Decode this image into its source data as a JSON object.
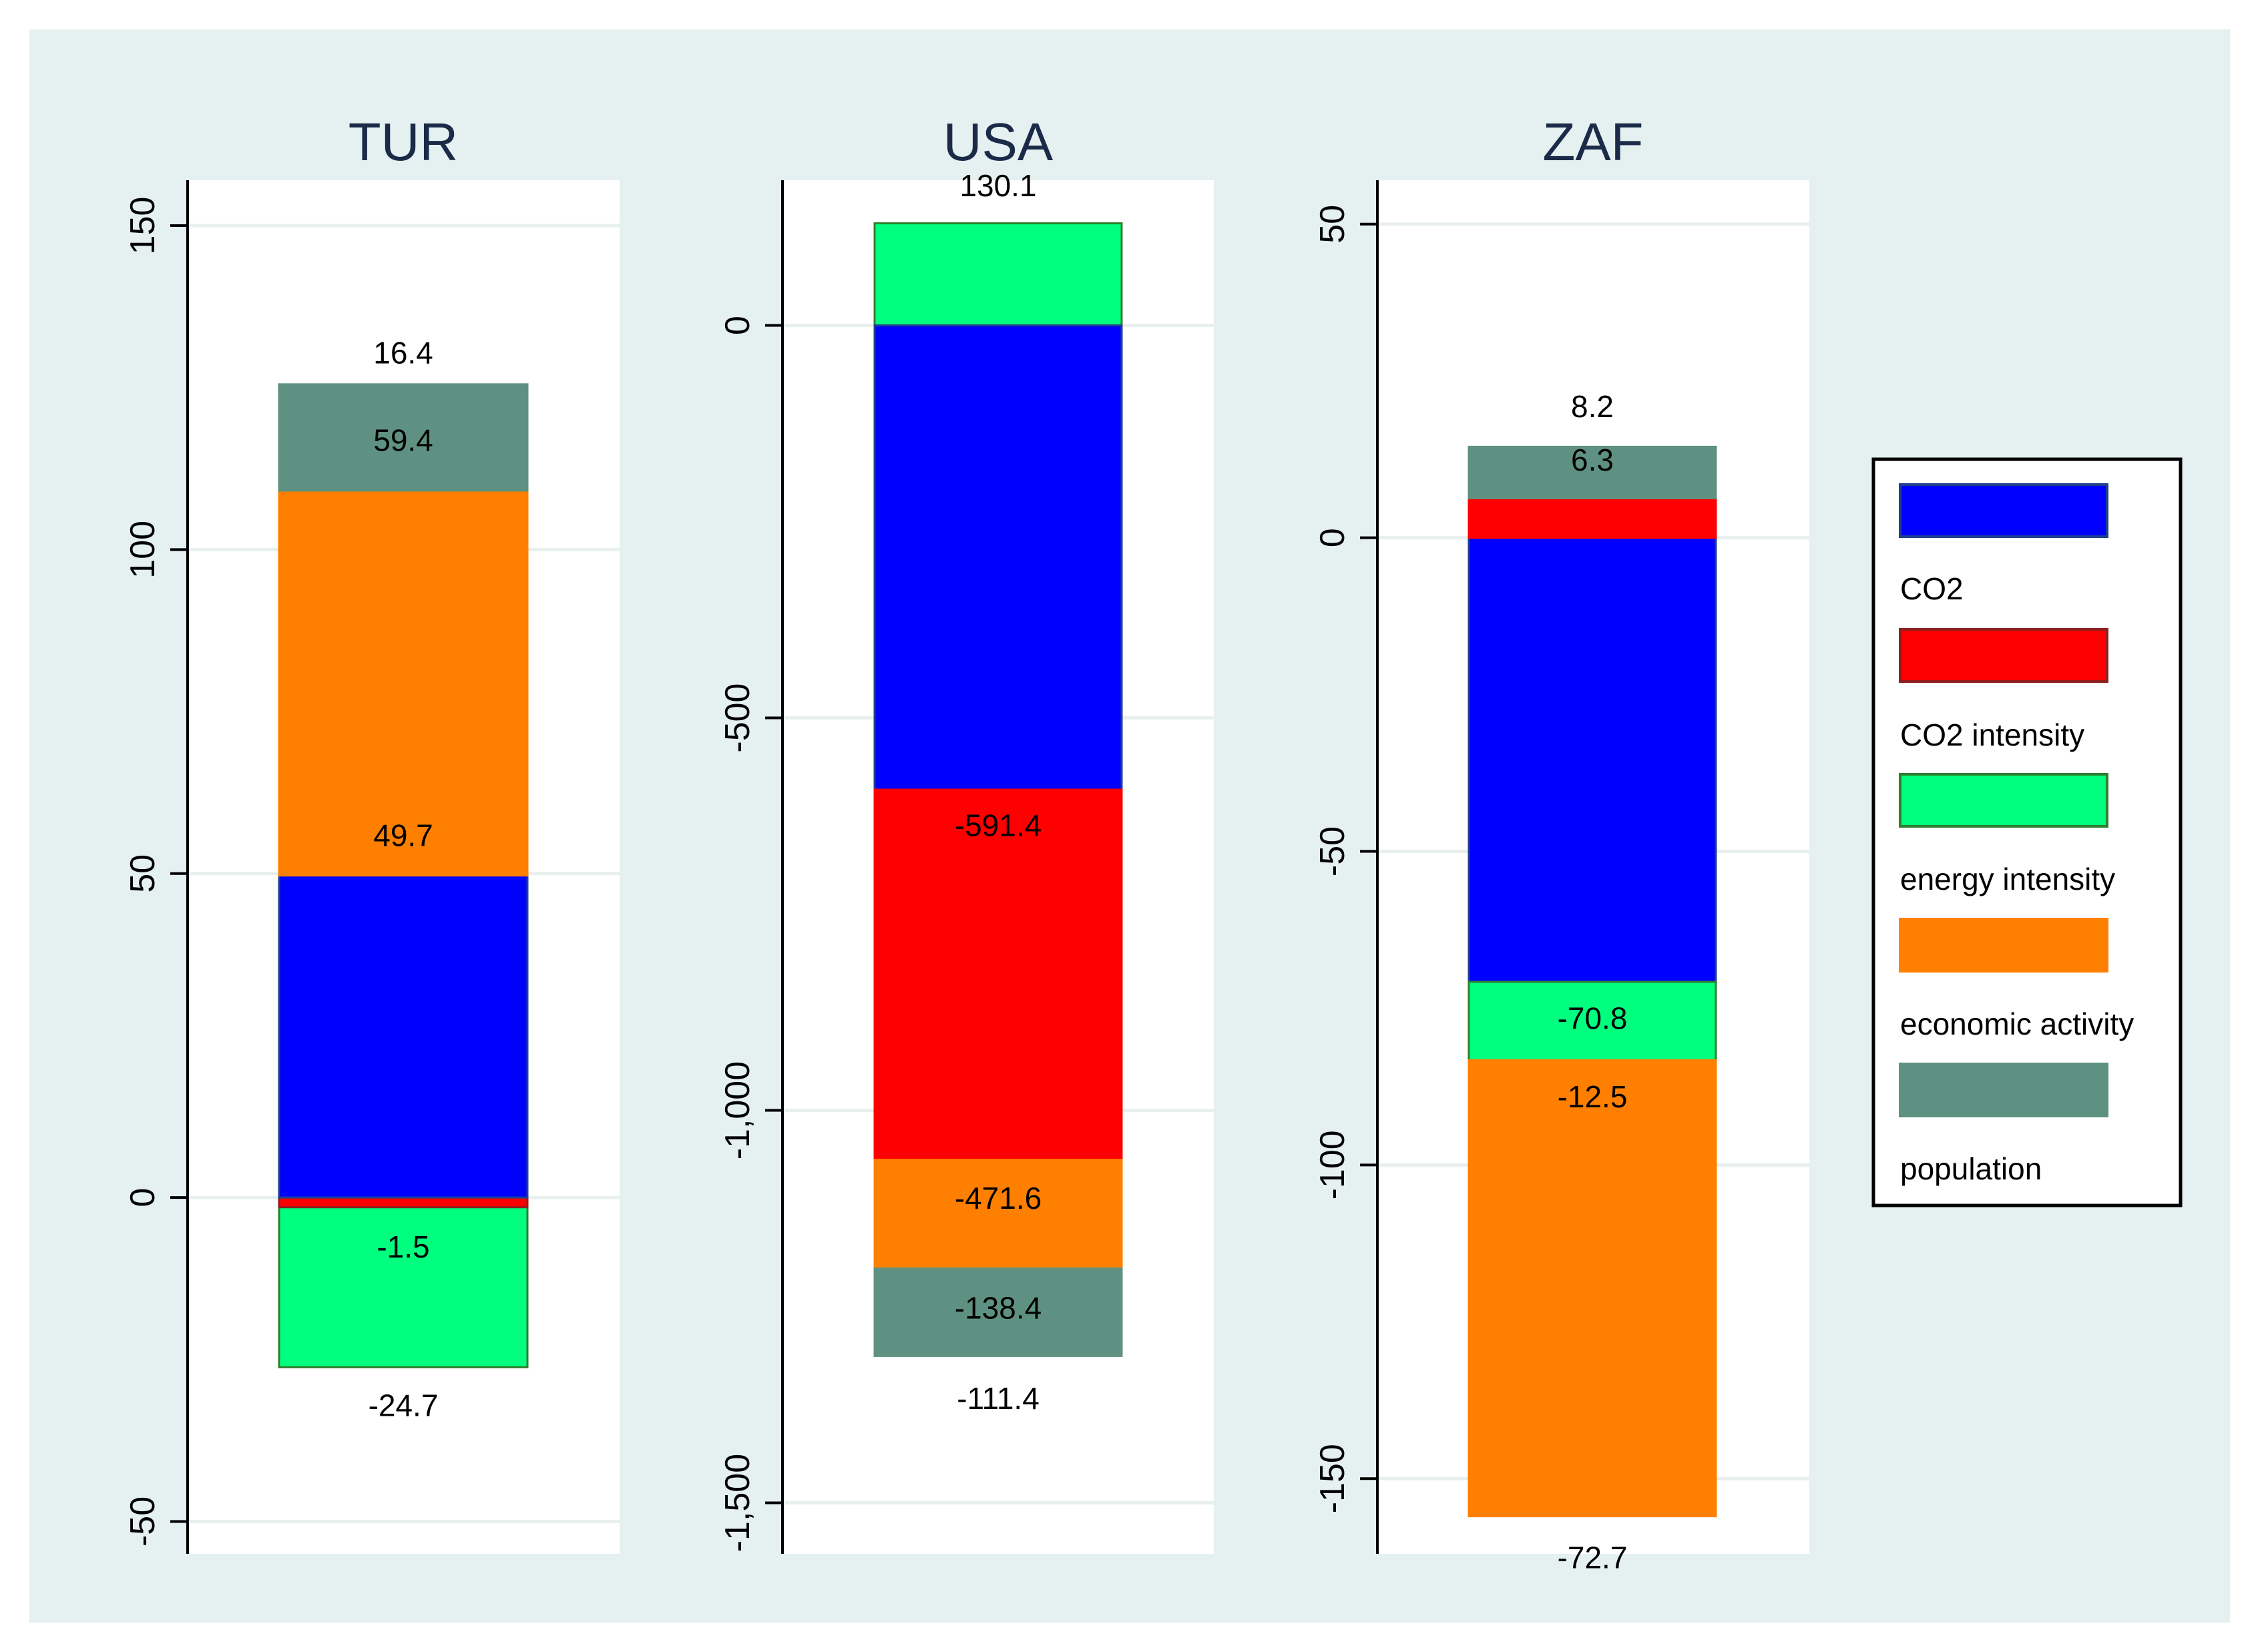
{
  "colors": {
    "outer_bg": "#e5f0f0",
    "panel_bg": "#ffffff",
    "gridline": "#e9efef",
    "axis": "#000000",
    "title": "#1a2a48"
  },
  "legend": {
    "position": "right",
    "entries": [
      {
        "label": "CO2",
        "color": "#0000ff",
        "border": "#1f3f8f"
      },
      {
        "label": "CO2 intensity",
        "color": "#ff0000",
        "border": "#8f1f1f"
      },
      {
        "label": "energy intensity",
        "color": "#00ff7f",
        "border": "#2f7f2f"
      },
      {
        "label": "economic activity",
        "color": "#ff8000",
        "border": "#ff8000"
      },
      {
        "label": "population",
        "color": "#5f9182",
        "border": "#5f9182"
      }
    ]
  },
  "chart_data": [
    {
      "type": "bar",
      "stacked": "waterfall",
      "title": "TUR",
      "ylim": [
        -55,
        157
      ],
      "ticks": [
        150,
        100,
        50,
        0,
        -50
      ],
      "tick_labels": [
        "150",
        "100",
        "50",
        "0",
        "-50"
      ],
      "segments": [
        {
          "series": "energy intensity",
          "from": -26.2,
          "to": -1.5,
          "color": "#00ff7f",
          "border": "#2f7f2f"
        },
        {
          "series": "CO2 intensity",
          "from": -1.5,
          "to": 0,
          "color": "#ff0000",
          "border": "#8f1f1f"
        },
        {
          "series": "CO2",
          "from": 0,
          "to": 49.7,
          "color": "#0000ff",
          "border": "#1f3f8f"
        },
        {
          "series": "economic activity",
          "from": 49.7,
          "to": 109.1,
          "color": "#ff8000",
          "border": "#ff8000"
        },
        {
          "series": "population",
          "from": 109.1,
          "to": 125.5,
          "color": "#5f9182",
          "border": "#5f9182"
        }
      ],
      "labels": [
        {
          "text": "16.4",
          "at": 130
        },
        {
          "text": "59.4",
          "at": 116.5
        },
        {
          "text": "49.7",
          "at": 55.5
        },
        {
          "text": "-1.5",
          "at": -8
        },
        {
          "text": "-24.7",
          "at": -32.5
        }
      ]
    },
    {
      "type": "bar",
      "stacked": "waterfall",
      "title": "USA",
      "ylim": [
        -1565,
        185
      ],
      "ticks": [
        0,
        -500,
        -1000,
        -1500
      ],
      "tick_labels": [
        "0",
        "-500",
        "-1,000",
        "-1,500"
      ],
      "segments": [
        {
          "series": "energy intensity",
          "from": 0,
          "to": 130.1,
          "color": "#00ff7f",
          "border": "#2f7f2f"
        },
        {
          "series": "CO2",
          "from": -591.4,
          "to": 0,
          "color": "#0000ff",
          "border": "#1f3f8f"
        },
        {
          "series": "CO2 intensity",
          "from": -1063,
          "to": -591.4,
          "color": "#ff0000",
          "border": "#ff0000"
        },
        {
          "series": "economic activity",
          "from": -1201.4,
          "to": -1063,
          "color": "#ff8000",
          "border": "#ff8000"
        },
        {
          "series": "population",
          "from": -1312.8,
          "to": -1201.4,
          "color": "#5f9182",
          "border": "#5f9182"
        }
      ],
      "labels": [
        {
          "text": "130.1",
          "at": 175
        },
        {
          "text": "-591.4",
          "at": -640
        },
        {
          "text": "-471.6",
          "at": -1115
        },
        {
          "text": "-138.4",
          "at": -1255
        },
        {
          "text": "-111.4",
          "at": -1370
        }
      ]
    },
    {
      "type": "bar",
      "stacked": "waterfall",
      "title": "ZAF",
      "ylim": [
        -162,
        57
      ],
      "ticks": [
        50,
        0,
        -50,
        -100,
        -150
      ],
      "tick_labels": [
        "50",
        "0",
        "-50",
        "-100",
        "-150"
      ],
      "segments": [
        {
          "series": "CO2",
          "from": -70.8,
          "to": 0,
          "color": "#0000ff",
          "border": "#1f3f8f"
        },
        {
          "series": "CO2 intensity",
          "from": 0,
          "to": 6.3,
          "color": "#ff0000",
          "border": "#ff0000"
        },
        {
          "series": "population",
          "from": 6.3,
          "to": 14.5,
          "color": "#5f9182",
          "border": "#5f9182"
        },
        {
          "series": "energy intensity",
          "from": -83.3,
          "to": -70.8,
          "color": "#00ff7f",
          "border": "#2f7f2f"
        },
        {
          "series": "economic activity",
          "from": -156,
          "to": -83.3,
          "color": "#ff8000",
          "border": "#ff8000"
        }
      ],
      "labels": [
        {
          "text": "8.2",
          "at": 20.5
        },
        {
          "text": "6.3",
          "at": 12
        },
        {
          "text": "-70.8",
          "at": -77
        },
        {
          "text": "-12.5",
          "at": -89.5
        },
        {
          "text": "-72.7",
          "at": -163
        }
      ]
    }
  ]
}
